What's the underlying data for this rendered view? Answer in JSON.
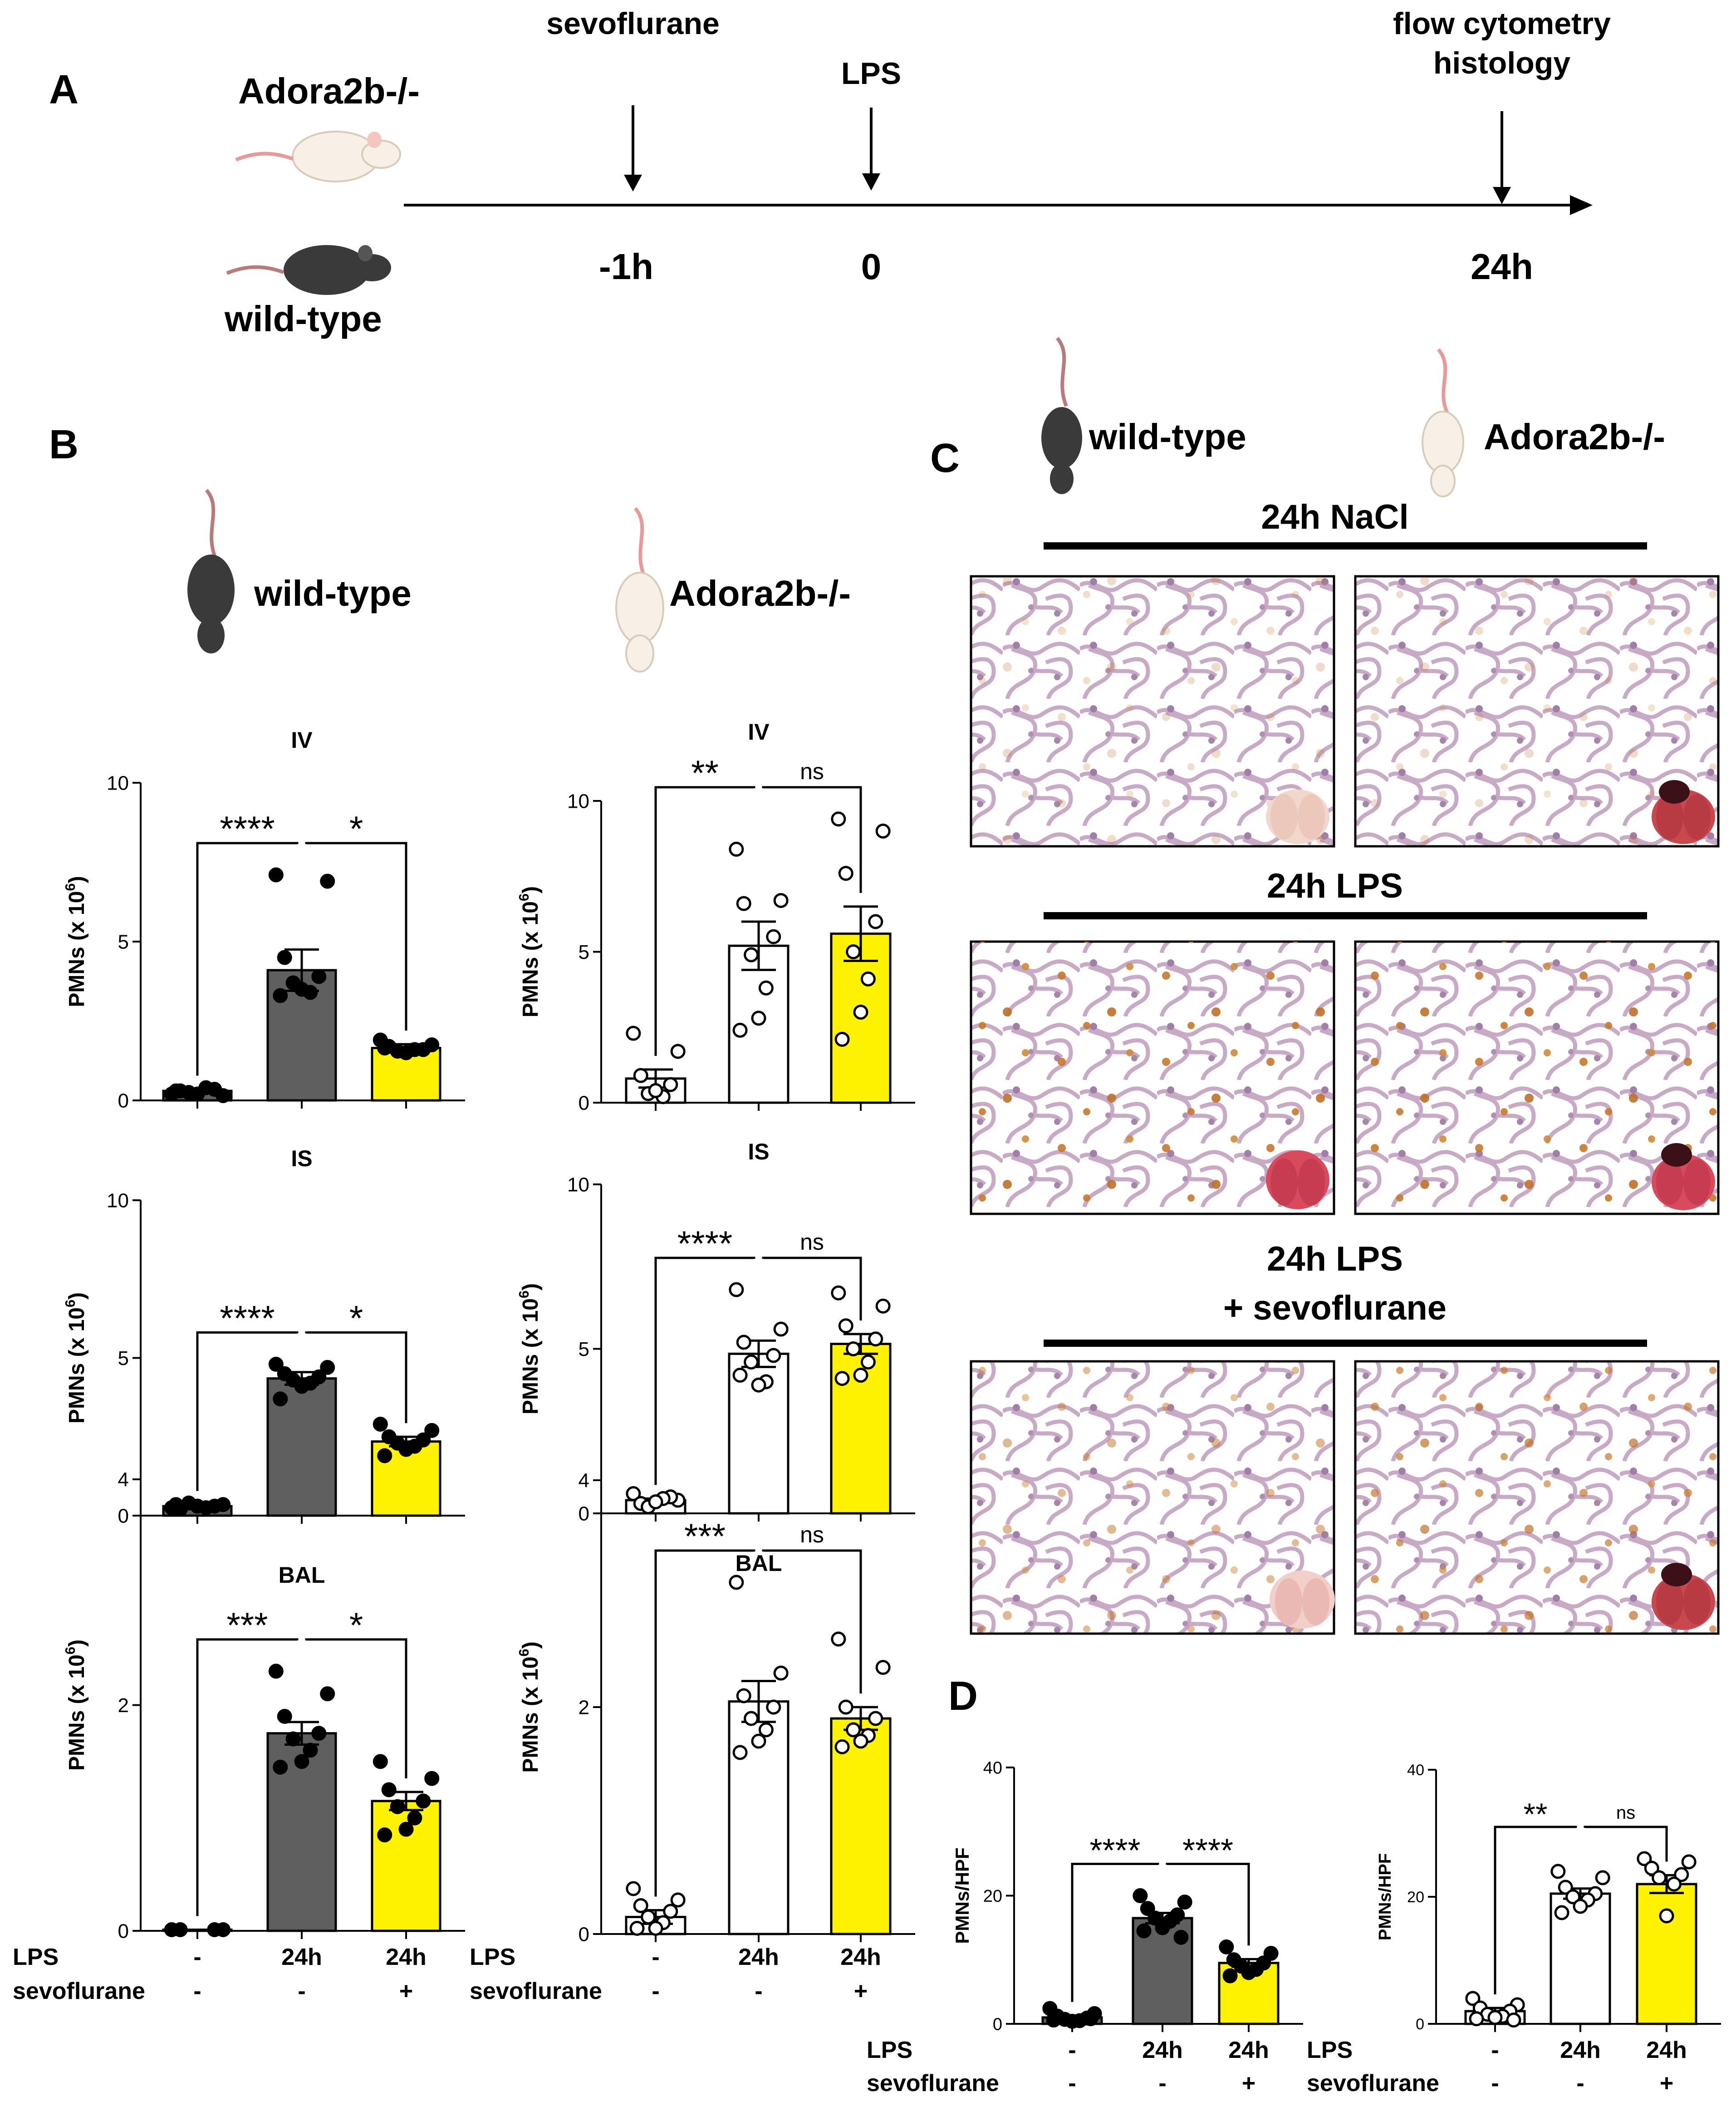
{
  "colors": {
    "wt_bar": "#5f5f5f",
    "ko_bar": "#ffffff",
    "sevo_bar": "#fff200",
    "ink": "#000000",
    "pmn_stain": "#c8792a",
    "tissue": "#c7a8c3"
  },
  "panel_a": {
    "letter": "A",
    "mouse_top": "Adora2b-/-",
    "mouse_bottom": "wild-type",
    "events": [
      {
        "label": "sevoflurane",
        "time": "-1h"
      },
      {
        "label": "LPS",
        "time": "0"
      },
      {
        "label_line1": "flow cytometry",
        "label_line2": "histology",
        "time": "24h"
      }
    ]
  },
  "panel_b": {
    "letter": "B",
    "wt_title": "wild-type",
    "ko_title": "Adora2b-/-",
    "xrow_labels": [
      "LPS",
      "sevoflurane"
    ],
    "lps_ticks": [
      "-",
      "24h",
      "24h"
    ],
    "sevo_ticks": [
      "-",
      "-",
      "+"
    ]
  },
  "panel_c": {
    "letter": "C",
    "wt_label": "wild-type",
    "ko_label": "Adora2b-/-",
    "rows": [
      {
        "title": "24h NaCl"
      },
      {
        "title": "24h LPS"
      },
      {
        "title_line1": "24h LPS",
        "title_line2": "+ sevoflurane"
      }
    ]
  },
  "panel_d": {
    "letter": "D"
  },
  "chart_data": [
    {
      "id": "b_wt_iv",
      "type": "bar",
      "title": "IV",
      "ylabel": "PMNs (x 10",
      "ylabel_sup": "6",
      "ylabel_end": ")",
      "genotype": "wild-type",
      "ylim": [
        0,
        10
      ],
      "yticks": [
        "0",
        "5",
        "10"
      ],
      "categories": [
        "-/-",
        "24h/-",
        "24h/+"
      ],
      "values": [
        0.3,
        4.1,
        1.65
      ],
      "sem": [
        0.05,
        0.65,
        0.12
      ],
      "points": [
        [
          0.2,
          0.15,
          0.3,
          0.35,
          0.25,
          0.4,
          0.2,
          0.3
        ],
        [
          7.1,
          6.9,
          4.5,
          3.9,
          3.7,
          3.4,
          3.5,
          3.3
        ],
        [
          1.9,
          1.75,
          1.7,
          1.6,
          1.55,
          1.6,
          1.5,
          1.65
        ]
      ],
      "fills": [
        "#5f5f5f",
        "#5f5f5f",
        "#fff200"
      ],
      "dot_fill": "#000000",
      "comparisons": [
        {
          "from": 0,
          "to": 1,
          "label": "****"
        },
        {
          "from": 1,
          "to": 2,
          "label": "*"
        }
      ]
    },
    {
      "id": "b_ko_iv",
      "type": "bar",
      "title": "IV",
      "ylabel": "PMNs (x 10",
      "ylabel_sup": "6",
      "ylabel_end": ")",
      "genotype": "Adora2b-/-",
      "ylim": [
        0,
        10
      ],
      "yticks": [
        "0",
        "5",
        "10"
      ],
      "categories": [
        "-/-",
        "24h/-",
        "24h/+"
      ],
      "values": [
        0.8,
        5.2,
        5.6
      ],
      "sem": [
        0.3,
        0.8,
        0.9
      ],
      "points": [
        [
          2.3,
          1.7,
          0.9,
          0.6,
          0.3,
          0.2,
          0.4
        ],
        [
          8.4,
          6.7,
          6.6,
          5.5,
          4.9,
          3.8,
          2.8,
          2.4
        ],
        [
          9.4,
          9.0,
          7.6,
          6.0,
          5.0,
          4.1,
          3.0,
          2.1
        ]
      ],
      "fills": [
        "#ffffff",
        "#ffffff",
        "#fff200"
      ],
      "dot_fill": "#ffffff",
      "comparisons": [
        {
          "from": 0,
          "to": 1,
          "label": "**"
        },
        {
          "from": 1,
          "to": 2,
          "label": "ns"
        }
      ]
    },
    {
      "id": "b_wt_is",
      "type": "bar",
      "title": "IS",
      "ylabel": "PMNs (x 10",
      "ylabel_sup": "6",
      "ylabel_end": ")",
      "genotype": "wild-type",
      "ylim": [
        0,
        10
      ],
      "yticks": [
        "0",
        "5",
        "10"
      ],
      "categories": [
        "-/-",
        "24h/-",
        "24h/+"
      ],
      "values": [
        0.3,
        4.35,
        2.35
      ],
      "sem": [
        0.05,
        0.2,
        0.15
      ],
      "points": [
        [
          0.25,
          0.35,
          0.2,
          0.3,
          0.4,
          0.25,
          0.3,
          0.35
        ],
        [
          4.8,
          4.7,
          4.5,
          4.4,
          4.3,
          4.2,
          4.1,
          3.7
        ],
        [
          2.9,
          2.7,
          2.5,
          2.4,
          2.3,
          2.2,
          2.1,
          1.9
        ]
      ],
      "fills": [
        "#5f5f5f",
        "#5f5f5f",
        "#fff200"
      ],
      "dot_fill": "#000000",
      "comparisons": [
        {
          "from": 0,
          "to": 1,
          "label": "****"
        },
        {
          "from": 1,
          "to": 2,
          "label": "*"
        }
      ]
    },
    {
      "id": "b_ko_is",
      "type": "bar",
      "title": "IS",
      "ylabel": "PMNs (x 10",
      "ylabel_sup": "6",
      "ylabel_end": ")",
      "genotype": "Adora2b-/-",
      "ylim": [
        0,
        10
      ],
      "yticks": [
        "0",
        "5",
        "10"
      ],
      "categories": [
        "-/-",
        "24h/-",
        "24h/+"
      ],
      "values": [
        0.4,
        4.85,
        5.15
      ],
      "sem": [
        0.05,
        0.4,
        0.3
      ],
      "points": [
        [
          0.6,
          0.4,
          0.3,
          0.5,
          0.2,
          0.45,
          0.35
        ],
        [
          6.8,
          5.6,
          5.2,
          4.8,
          4.6,
          4.0,
          3.9,
          4.2
        ],
        [
          6.7,
          6.3,
          5.7,
          5.3,
          5.0,
          4.6,
          4.2,
          4.1
        ]
      ],
      "fills": [
        "#ffffff",
        "#ffffff",
        "#fff200"
      ],
      "dot_fill": "#ffffff",
      "comparisons": [
        {
          "from": 0,
          "to": 1,
          "label": "****"
        },
        {
          "from": 1,
          "to": 2,
          "label": "ns"
        }
      ]
    },
    {
      "id": "b_wt_bal",
      "type": "bar",
      "title": "BAL",
      "ylabel": "PMNs (x 10",
      "ylabel_sup": "6",
      "ylabel_end": ")",
      "genotype": "wild-type",
      "ylim": [
        0,
        4
      ],
      "yticks": [
        "0",
        "2",
        "4"
      ],
      "categories": [
        "-/-",
        "24h/-",
        "24h/+"
      ],
      "values": [
        0.01,
        1.75,
        1.15
      ],
      "sem": [
        0.0,
        0.1,
        0.08
      ],
      "points": [
        [
          0.01,
          0.01,
          0.01,
          0.01
        ],
        [
          2.3,
          2.1,
          1.9,
          1.75,
          1.7,
          1.6,
          1.5,
          1.45
        ],
        [
          1.5,
          1.35,
          1.25,
          1.15,
          1.1,
          1.0,
          0.9,
          0.85
        ]
      ],
      "fills": [
        "#5f5f5f",
        "#5f5f5f",
        "#fff200"
      ],
      "dot_fill": "#000000",
      "comparisons": [
        {
          "from": 0,
          "to": 1,
          "label": "***"
        },
        {
          "from": 1,
          "to": 2,
          "label": "*"
        }
      ]
    },
    {
      "id": "b_ko_bal",
      "type": "bar",
      "title": "BAL",
      "ylabel": "PMNs (x 10",
      "ylabel_sup": "6",
      "ylabel_end": ")",
      "genotype": "Adora2b-/-",
      "ylim": [
        0,
        4
      ],
      "yticks": [
        "0",
        "2",
        "4"
      ],
      "categories": [
        "-/-",
        "24h/-",
        "24h/+"
      ],
      "values": [
        0.15,
        2.05,
        1.9
      ],
      "sem": [
        0.06,
        0.18,
        0.1
      ],
      "points": [
        [
          0.4,
          0.3,
          0.25,
          0.2,
          0.15,
          0.1,
          0.05,
          0.05
        ],
        [
          3.1,
          2.3,
          2.1,
          2.0,
          1.9,
          1.8,
          1.7,
          1.6
        ],
        [
          2.6,
          2.35,
          2.0,
          1.9,
          1.8,
          1.75,
          1.7,
          1.65
        ]
      ],
      "fills": [
        "#ffffff",
        "#ffffff",
        "#fff200"
      ],
      "dot_fill": "#ffffff",
      "comparisons": [
        {
          "from": 0,
          "to": 1,
          "label": "***"
        },
        {
          "from": 1,
          "to": 2,
          "label": "ns"
        }
      ]
    },
    {
      "id": "d_wt",
      "type": "bar",
      "title": "",
      "ylabel": "PMNs/HPF",
      "ylabel_sup": "",
      "ylabel_end": "",
      "genotype": "wild-type",
      "ylim": [
        0,
        40
      ],
      "yticks": [
        "0",
        "20",
        "40"
      ],
      "categories": [
        "-/-",
        "24h/-",
        "24h/+"
      ],
      "values": [
        1.0,
        16.5,
        9.5
      ],
      "sem": [
        0.3,
        0.8,
        0.6
      ],
      "points": [
        [
          2.4,
          1.6,
          1.2,
          0.9,
          0.7,
          0.5,
          0.4,
          0.6,
          0.8
        ],
        [
          20.0,
          19.0,
          18.0,
          17.0,
          16.5,
          16.0,
          15.0,
          14.5,
          13.5
        ],
        [
          12.0,
          11.0,
          10.0,
          9.5,
          9.0,
          8.5,
          8.0,
          7.5
        ]
      ],
      "fills": [
        "#5f5f5f",
        "#5f5f5f",
        "#fff200"
      ],
      "dot_fill": "#000000",
      "comparisons": [
        {
          "from": 0,
          "to": 1,
          "label": "****"
        },
        {
          "from": 1,
          "to": 2,
          "label": "****"
        }
      ]
    },
    {
      "id": "d_ko",
      "type": "bar",
      "title": "",
      "ylabel": "PMNs/HPF",
      "ylabel_sup": "",
      "ylabel_end": "",
      "genotype": "Adora2b-/-",
      "ylim": [
        0,
        40
      ],
      "yticks": [
        "0",
        "20",
        "40"
      ],
      "categories": [
        "-/-",
        "24h/-",
        "24h/+"
      ],
      "values": [
        2.0,
        20.5,
        22.0
      ],
      "sem": [
        0.5,
        0.8,
        1.4
      ],
      "points": [
        [
          4.0,
          3.0,
          2.5,
          2.0,
          1.5,
          1.2,
          1.0,
          0.8,
          0.6
        ],
        [
          24.0,
          23.0,
          21.5,
          20.5,
          20.0,
          19.5,
          18.5,
          17.5
        ],
        [
          26.0,
          25.5,
          24.5,
          23.5,
          23.0,
          22.0,
          17.0
        ]
      ],
      "fills": [
        "#ffffff",
        "#ffffff",
        "#fff200"
      ],
      "dot_fill": "#ffffff",
      "comparisons": [
        {
          "from": 0,
          "to": 1,
          "label": "**"
        },
        {
          "from": 1,
          "to": 2,
          "label": "ns"
        }
      ]
    }
  ]
}
